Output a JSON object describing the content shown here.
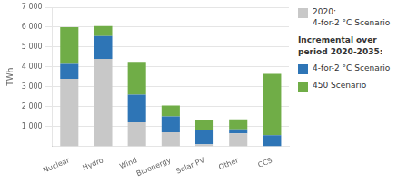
{
  "chart_data": {
    "type": "bar",
    "stacked": true,
    "categories": [
      "Nuclear",
      "Hydro",
      "Wind",
      "Bioenergy",
      "Solar PV",
      "Other",
      "CCS"
    ],
    "series": [
      {
        "name": "2020:\n4-for-2 °C Scenario",
        "color": "#c8c8c8",
        "values": [
          3400,
          4400,
          1200,
          700,
          100,
          650,
          0
        ]
      },
      {
        "name": "4-for-2 °C Scenario",
        "color": "#2e75b6",
        "values": [
          750,
          1150,
          1400,
          800,
          700,
          200,
          550
        ]
      },
      {
        "name": "450 Scenario",
        "color": "#70ad47",
        "values": [
          1850,
          500,
          1650,
          550,
          500,
          500,
          3100
        ]
      }
    ],
    "annotations": [
      "Incremental over\nperiod 2020-2035:"
    ],
    "ylabel": "TWh",
    "ylim": [
      0,
      7000
    ],
    "yticks": [
      {
        "value": 1000,
        "label": "1 000"
      },
      {
        "value": 2000,
        "label": "2 000"
      },
      {
        "value": 3000,
        "label": "3 000"
      },
      {
        "value": 4000,
        "label": "4 000"
      },
      {
        "value": 5000,
        "label": "5 000"
      },
      {
        "value": 6000,
        "label": "6 000"
      },
      {
        "value": 7000,
        "label": "7 000"
      }
    ],
    "grid": true,
    "legend": "right"
  }
}
